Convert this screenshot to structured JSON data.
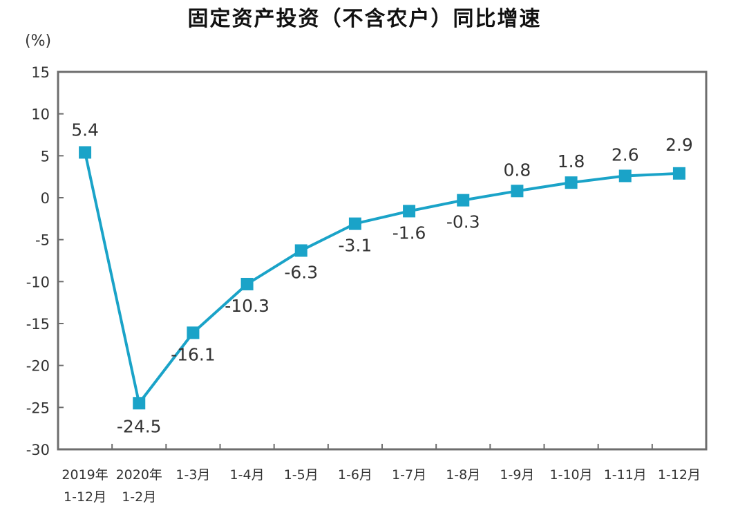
{
  "chart_data": {
    "type": "line",
    "title": "固定资产投资（不含农户）同比增速",
    "ylabel": "(%)",
    "ylim": [
      -30,
      15
    ],
    "yticks": [
      15,
      10,
      5,
      0,
      -5,
      -10,
      -15,
      -20,
      -25,
      -30
    ],
    "ytick_labels": [
      "15",
      "10",
      "5",
      "0",
      "-5",
      "-10",
      "-15",
      "-20",
      "-25",
      "-30"
    ],
    "categories": [
      [
        "2019年",
        "1-12月"
      ],
      [
        "2020年",
        "1-2月"
      ],
      [
        "1-3月"
      ],
      [
        "1-4月"
      ],
      [
        "1-5月"
      ],
      [
        "1-6月"
      ],
      [
        "1-7月"
      ],
      [
        "1-8月"
      ],
      [
        "1-9月"
      ],
      [
        "1-10月"
      ],
      [
        "1-11月"
      ],
      [
        "1-12月"
      ]
    ],
    "values": [
      5.4,
      -24.5,
      -16.1,
      -10.3,
      -6.3,
      -3.1,
      -1.6,
      -0.3,
      0.8,
      1.8,
      2.6,
      2.9
    ],
    "data_labels": [
      "5.4",
      "-24.5",
      "-16.1",
      "-10.3",
      "-6.3",
      "-3.1",
      "-1.6",
      "-0.3",
      "0.8",
      "1.8",
      "2.6",
      "2.9"
    ],
    "grid": false,
    "colors": {
      "line": "#1aa3c8",
      "frame": "#6d6d6d"
    }
  }
}
